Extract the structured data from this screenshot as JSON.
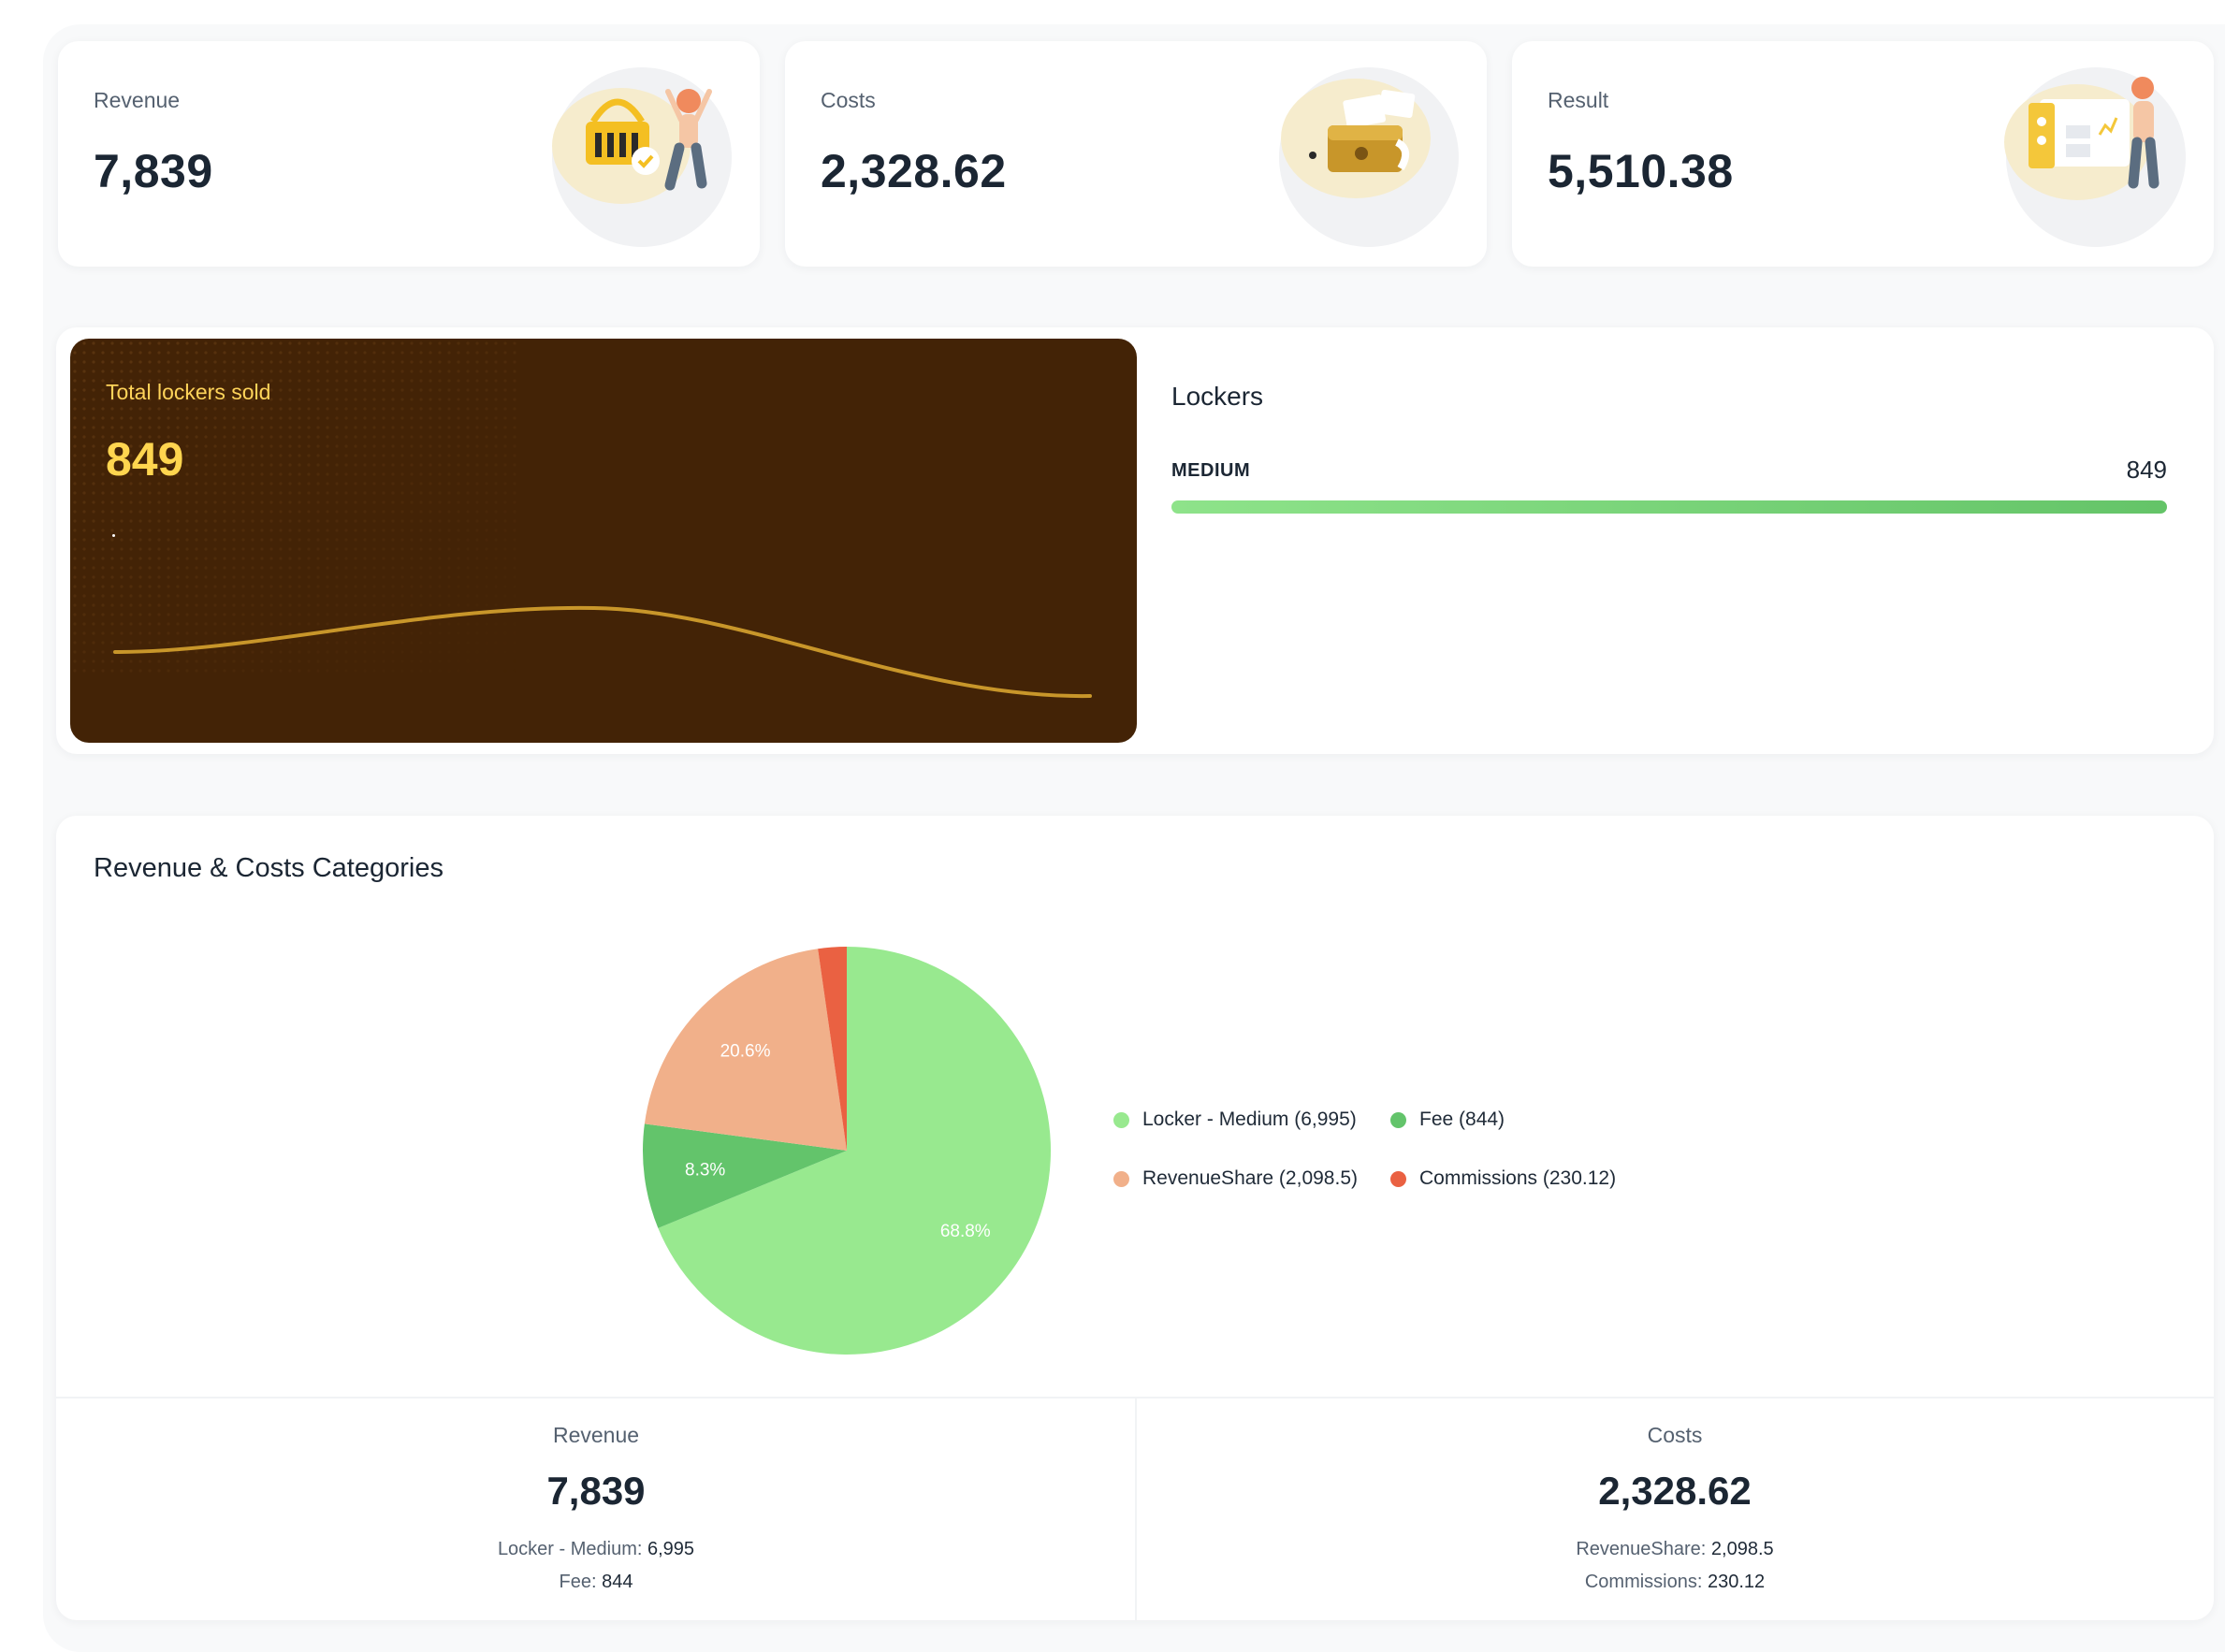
{
  "kpis": [
    {
      "label": "Revenue",
      "value": "7,839"
    },
    {
      "label": "Costs",
      "value": "2,328.62"
    },
    {
      "label": "Result",
      "value": "5,510.38"
    }
  ],
  "lockers_sold": {
    "label": "Total lockers sold",
    "value": "849",
    "line_color": "#c8962a"
  },
  "lockers": {
    "title": "Lockers",
    "items": [
      {
        "category": "MEDIUM",
        "count": "849",
        "fraction": 1.0
      }
    ]
  },
  "categories": {
    "title": "Revenue & Costs Categories",
    "slice_labels": [
      "68.8%",
      "8.3%",
      "20.6%"
    ],
    "legend": [
      {
        "label": "Locker - Medium (6,995)",
        "color": "#98e98f"
      },
      {
        "label": "Fee (844)",
        "color": "#63c46b"
      },
      {
        "label": "RevenueShare (2,098.5)",
        "color": "#f1b08a"
      },
      {
        "label": "Commissions (230.12)",
        "color": "#ea6142"
      }
    ],
    "revenue": {
      "label": "Revenue",
      "value": "7,839",
      "lines": [
        {
          "name": "Locker - Medium:",
          "amount": "6,995"
        },
        {
          "name": "Fee:",
          "amount": "844"
        }
      ]
    },
    "costs": {
      "label": "Costs",
      "value": "2,328.62",
      "lines": [
        {
          "name": "RevenueShare:",
          "amount": "2,098.5"
        },
        {
          "name": "Commissions:",
          "amount": "230.12"
        }
      ]
    }
  },
  "chart_data": {
    "type": "pie",
    "title": "Revenue & Costs Categories",
    "categories": [
      "Locker - Medium",
      "Fee",
      "RevenueShare",
      "Commissions"
    ],
    "values": [
      6995,
      844,
      2098.5,
      230.12
    ],
    "data_labels": [
      "68.8%",
      "8.3%",
      "20.6%",
      ""
    ],
    "colors": [
      "#98e98f",
      "#63c46b",
      "#f1b08a",
      "#ea6142"
    ],
    "legend": "right"
  }
}
